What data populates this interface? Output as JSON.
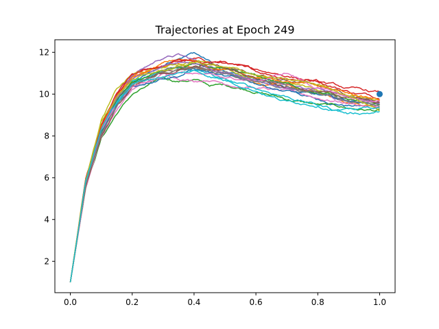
{
  "chart_data": {
    "type": "line",
    "title": "Trajectories at Epoch 249",
    "xlabel": "",
    "ylabel": "",
    "xlim": [
      -0.05,
      1.05
    ],
    "ylim": [
      0.5,
      12.6
    ],
    "xticks": [
      0.0,
      0.2,
      0.4,
      0.6,
      0.8,
      1.0
    ],
    "xtick_labels": [
      "0.0",
      "0.2",
      "0.4",
      "0.6",
      "0.8",
      "1.0"
    ],
    "yticks": [
      2,
      4,
      6,
      8,
      10,
      12
    ],
    "ytick_labels": [
      "2",
      "4",
      "6",
      "8",
      "10",
      "12"
    ],
    "grid": false,
    "legend": "none",
    "n_trajectories": 20,
    "start_point": [
      0.0,
      1.0
    ],
    "target_point": {
      "x": 1.0,
      "y": 10.0,
      "color": "#1f77b4"
    },
    "series": [
      {
        "color": "#1f77b4",
        "x": [
          0,
          0.05,
          0.1,
          0.15,
          0.2,
          0.3,
          0.35,
          0.4,
          0.45,
          0.5,
          0.6,
          0.7,
          0.8,
          0.9,
          1.0
        ],
        "y": [
          1.0,
          5.7,
          8.2,
          9.6,
          10.5,
          11.3,
          11.8,
          12.05,
          11.6,
          11.0,
          10.7,
          10.2,
          9.7,
          9.5,
          9.4
        ]
      },
      {
        "color": "#ff7f0e",
        "x": [
          0,
          0.05,
          0.1,
          0.15,
          0.2,
          0.3,
          0.35,
          0.4,
          0.45,
          0.5,
          0.6,
          0.7,
          0.8,
          0.9,
          1.0
        ],
        "y": [
          1.0,
          5.8,
          8.3,
          9.8,
          10.7,
          11.2,
          11.3,
          11.3,
          11.2,
          11.0,
          10.5,
          10.3,
          10.0,
          9.7,
          9.5
        ]
      },
      {
        "color": "#2ca02c",
        "x": [
          0,
          0.05,
          0.1,
          0.15,
          0.2,
          0.3,
          0.35,
          0.4,
          0.45,
          0.5,
          0.6,
          0.7,
          0.8,
          0.9,
          1.0
        ],
        "y": [
          1.0,
          5.6,
          7.9,
          9.1,
          10.0,
          10.7,
          10.6,
          10.7,
          10.4,
          10.4,
          10.2,
          9.8,
          9.5,
          9.3,
          9.2
        ]
      },
      {
        "color": "#d62728",
        "x": [
          0,
          0.05,
          0.1,
          0.15,
          0.2,
          0.3,
          0.35,
          0.4,
          0.45,
          0.5,
          0.6,
          0.7,
          0.8,
          0.9,
          1.0
        ],
        "y": [
          1.0,
          5.9,
          8.4,
          9.9,
          10.8,
          11.3,
          11.5,
          11.6,
          11.5,
          11.5,
          11.0,
          10.8,
          10.7,
          10.2,
          9.9
        ]
      },
      {
        "color": "#9467bd",
        "x": [
          0,
          0.05,
          0.1,
          0.15,
          0.2,
          0.3,
          0.35,
          0.4,
          0.45,
          0.5,
          0.6,
          0.7,
          0.8,
          0.9,
          1.0
        ],
        "y": [
          1.0,
          5.8,
          8.5,
          10.0,
          11.0,
          11.8,
          11.9,
          11.6,
          11.3,
          11.1,
          10.8,
          10.4,
          10.0,
          9.6,
          9.5
        ]
      },
      {
        "color": "#8c564b",
        "x": [
          0,
          0.05,
          0.1,
          0.15,
          0.2,
          0.3,
          0.35,
          0.4,
          0.45,
          0.5,
          0.6,
          0.7,
          0.8,
          0.9,
          1.0
        ],
        "y": [
          1.0,
          5.7,
          8.1,
          9.5,
          10.5,
          11.0,
          11.2,
          11.4,
          11.2,
          11.3,
          10.9,
          10.6,
          10.4,
          10.0,
          9.7
        ]
      },
      {
        "color": "#e377c2",
        "x": [
          0,
          0.05,
          0.1,
          0.15,
          0.2,
          0.3,
          0.35,
          0.4,
          0.45,
          0.5,
          0.6,
          0.7,
          0.8,
          0.9,
          1.0
        ],
        "y": [
          1.0,
          5.6,
          8.0,
          9.3,
          10.2,
          10.9,
          10.8,
          10.7,
          10.8,
          10.6,
          10.4,
          10.1,
          9.8,
          9.6,
          9.4
        ]
      },
      {
        "color": "#7f7f7f",
        "x": [
          0,
          0.05,
          0.1,
          0.15,
          0.2,
          0.3,
          0.35,
          0.4,
          0.45,
          0.5,
          0.6,
          0.7,
          0.8,
          0.9,
          1.0
        ],
        "y": [
          1.0,
          5.7,
          8.2,
          9.6,
          10.4,
          11.0,
          11.1,
          11.2,
          11.0,
          10.9,
          10.6,
          10.3,
          10.1,
          9.8,
          9.6
        ]
      },
      {
        "color": "#bcbd22",
        "x": [
          0,
          0.05,
          0.1,
          0.15,
          0.2,
          0.3,
          0.35,
          0.4,
          0.45,
          0.5,
          0.6,
          0.7,
          0.8,
          0.9,
          1.0
        ],
        "y": [
          1.0,
          6.0,
          8.8,
          10.2,
          10.9,
          11.2,
          11.4,
          11.6,
          11.5,
          11.3,
          10.8,
          10.5,
          10.2,
          9.9,
          9.8
        ]
      },
      {
        "color": "#17becf",
        "x": [
          0,
          0.05,
          0.1,
          0.15,
          0.2,
          0.3,
          0.35,
          0.4,
          0.45,
          0.5,
          0.6,
          0.7,
          0.8,
          0.9,
          1.0
        ],
        "y": [
          1.0,
          5.8,
          8.3,
          9.7,
          10.6,
          11.0,
          11.2,
          11.1,
          10.9,
          10.6,
          10.2,
          9.9,
          9.5,
          9.1,
          9.2
        ]
      },
      {
        "color": "#1f77b4",
        "x": [
          0,
          0.05,
          0.1,
          0.15,
          0.2,
          0.3,
          0.35,
          0.4,
          0.45,
          0.5,
          0.6,
          0.7,
          0.8,
          0.9,
          1.0
        ],
        "y": [
          1.0,
          5.7,
          8.1,
          9.4,
          10.3,
          10.9,
          11.0,
          11.3,
          11.1,
          10.8,
          10.5,
          10.2,
          9.9,
          9.6,
          9.6
        ]
      },
      {
        "color": "#ff7f0e",
        "x": [
          0,
          0.05,
          0.1,
          0.15,
          0.2,
          0.3,
          0.35,
          0.4,
          0.45,
          0.5,
          0.6,
          0.7,
          0.8,
          0.9,
          1.0
        ],
        "y": [
          1.0,
          5.9,
          8.5,
          9.9,
          10.7,
          11.4,
          11.6,
          11.5,
          11.3,
          11.2,
          10.9,
          10.6,
          10.3,
          10.0,
          9.7
        ]
      },
      {
        "color": "#2ca02c",
        "x": [
          0,
          0.05,
          0.1,
          0.15,
          0.2,
          0.3,
          0.35,
          0.4,
          0.45,
          0.5,
          0.6,
          0.7,
          0.8,
          0.9,
          1.0
        ],
        "y": [
          1.0,
          5.8,
          8.2,
          9.6,
          10.5,
          11.1,
          11.2,
          11.3,
          11.2,
          11.0,
          10.7,
          10.4,
          10.1,
          9.7,
          9.5
        ]
      },
      {
        "color": "#d62728",
        "x": [
          0,
          0.05,
          0.1,
          0.15,
          0.2,
          0.3,
          0.35,
          0.4,
          0.45,
          0.5,
          0.6,
          0.7,
          0.8,
          0.9,
          1.0
        ],
        "y": [
          1.0,
          5.9,
          8.4,
          9.8,
          10.8,
          11.3,
          11.6,
          11.5,
          11.4,
          11.4,
          11.1,
          10.9,
          10.6,
          10.2,
          10.0
        ]
      },
      {
        "color": "#9467bd",
        "x": [
          0,
          0.05,
          0.1,
          0.15,
          0.2,
          0.3,
          0.35,
          0.4,
          0.45,
          0.5,
          0.6,
          0.7,
          0.8,
          0.9,
          1.0
        ],
        "y": [
          1.0,
          5.7,
          8.2,
          9.7,
          10.6,
          11.2,
          11.4,
          11.4,
          11.2,
          11.1,
          10.8,
          10.4,
          10.2,
          9.8,
          9.6
        ]
      },
      {
        "color": "#8c564b",
        "x": [
          0,
          0.05,
          0.1,
          0.15,
          0.2,
          0.3,
          0.35,
          0.4,
          0.45,
          0.5,
          0.6,
          0.7,
          0.8,
          0.9,
          1.0
        ],
        "y": [
          1.0,
          5.6,
          8.0,
          9.4,
          10.3,
          10.9,
          11.1,
          11.3,
          11.4,
          11.2,
          10.8,
          10.5,
          10.2,
          9.9,
          9.5
        ]
      },
      {
        "color": "#e377c2",
        "x": [
          0,
          0.05,
          0.1,
          0.15,
          0.2,
          0.3,
          0.35,
          0.4,
          0.45,
          0.5,
          0.6,
          0.7,
          0.8,
          0.9,
          1.0
        ],
        "y": [
          1.0,
          5.8,
          8.3,
          9.6,
          10.4,
          11.0,
          11.2,
          11.1,
          10.9,
          10.8,
          10.6,
          11.0,
          10.3,
          9.8,
          9.6
        ]
      },
      {
        "color": "#7f7f7f",
        "x": [
          0,
          0.05,
          0.1,
          0.15,
          0.2,
          0.3,
          0.35,
          0.4,
          0.45,
          0.5,
          0.6,
          0.7,
          0.8,
          0.9,
          1.0
        ],
        "y": [
          1.0,
          5.7,
          8.1,
          9.5,
          10.5,
          11.1,
          11.3,
          11.2,
          11.0,
          10.9,
          10.7,
          10.3,
          10.0,
          9.7,
          9.4
        ]
      },
      {
        "color": "#bcbd22",
        "x": [
          0,
          0.05,
          0.1,
          0.15,
          0.2,
          0.3,
          0.35,
          0.4,
          0.45,
          0.5,
          0.6,
          0.7,
          0.8,
          0.9,
          1.0
        ],
        "y": [
          1.0,
          5.9,
          8.6,
          9.9,
          10.7,
          11.1,
          11.3,
          11.5,
          11.4,
          11.2,
          10.9,
          10.6,
          10.4,
          10.0,
          9.3
        ]
      },
      {
        "color": "#17becf",
        "x": [
          0,
          0.05,
          0.1,
          0.15,
          0.2,
          0.3,
          0.35,
          0.4,
          0.45,
          0.5,
          0.6,
          0.7,
          0.8,
          0.9,
          1.0
        ],
        "y": [
          1.0,
          5.8,
          8.3,
          9.6,
          10.5,
          10.9,
          11.0,
          11.1,
          10.9,
          10.7,
          10.3,
          9.7,
          9.6,
          9.3,
          9.4
        ]
      }
    ]
  }
}
